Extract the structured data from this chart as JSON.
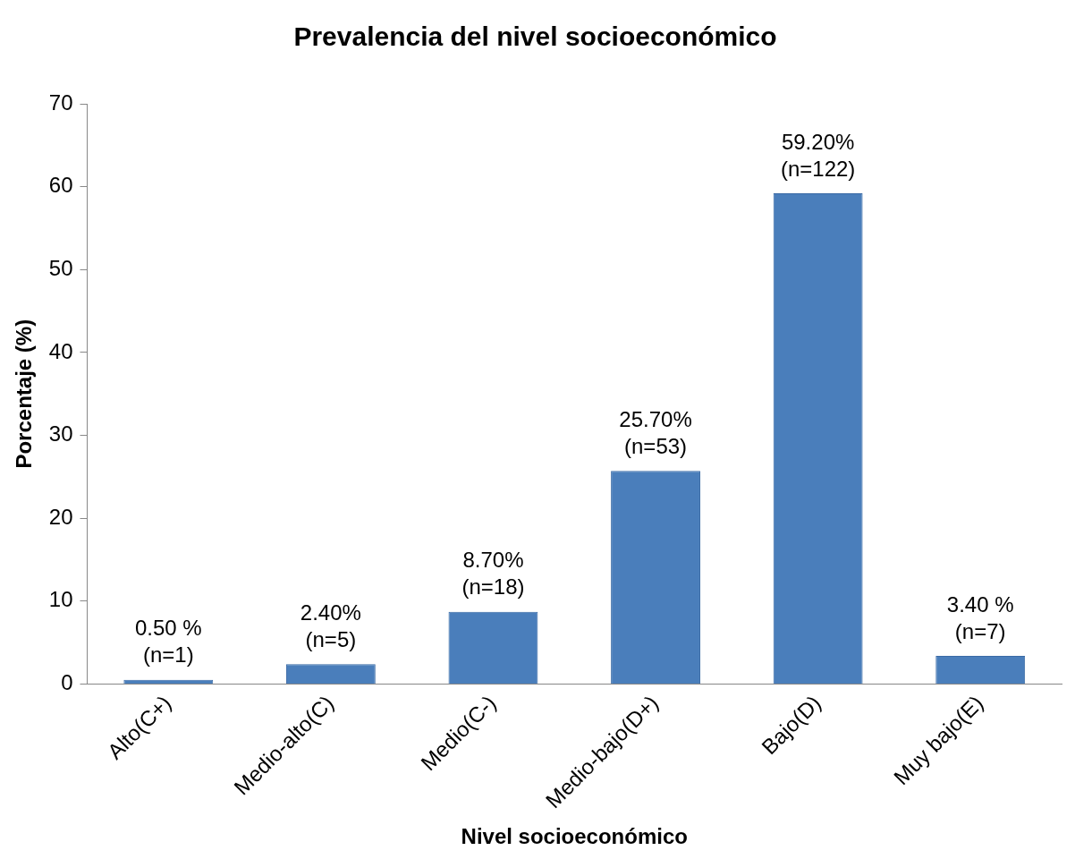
{
  "chart_data": {
    "type": "bar",
    "title": "Prevalencia del nivel socioeconómico",
    "xlabel": "Nivel socioeconómico",
    "ylabel": "Porcentaje (%)",
    "categories": [
      "Alto(C+)",
      "Medio-alto(C)",
      "Medio(C-)",
      "Medio-bajo(D+)",
      "Bajo(D)",
      "Muy bajo(E)"
    ],
    "values": [
      0.5,
      2.4,
      8.7,
      25.7,
      59.2,
      3.4
    ],
    "value_labels": [
      "0.50 %\n(n=1)",
      "2.40%\n(n=5)",
      "8.70%\n(n=18)",
      "25.70%\n(n=53)",
      "59.20%\n(n=122)",
      "3.40 %\n(n=7)"
    ],
    "color": "#4a7ebb",
    "ylim": [
      0,
      70
    ],
    "yticks": [
      0,
      10,
      20,
      30,
      40,
      50,
      60,
      70
    ],
    "grid": false,
    "legend": false
  }
}
